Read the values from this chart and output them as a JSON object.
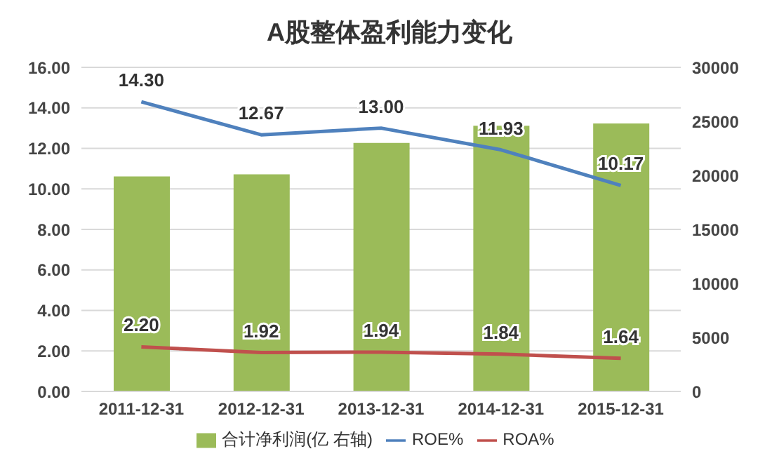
{
  "chart_data": {
    "type": "bar",
    "title": "A股整体盈利能力变化",
    "categories": [
      "2011-12-31",
      "2012-12-31",
      "2013-12-31",
      "2014-12-31",
      "2015-12-31"
    ],
    "series": [
      {
        "name": "合计净利润(亿 右轴)",
        "axis": "y2",
        "color": "#9bbb59",
        "values": [
          19900,
          20100,
          23000,
          24600,
          24800
        ]
      },
      {
        "name": "ROE%",
        "type": "line",
        "color": "#4f81bd",
        "values": [
          14.3,
          12.67,
          13.0,
          11.93,
          10.17
        ],
        "value_labels": [
          "14.30",
          "12.67",
          "13.00",
          "11.93",
          "10.17"
        ]
      },
      {
        "name": "ROA%",
        "type": "line",
        "color": "#c0504d",
        "values": [
          2.2,
          1.92,
          1.94,
          1.84,
          1.64
        ],
        "value_labels": [
          "2.20",
          "1.92",
          "1.94",
          "1.84",
          "1.64"
        ]
      }
    ],
    "ylim": [
      0,
      16
    ],
    "yticks": [
      {
        "value": 0,
        "label": "0.00"
      },
      {
        "value": 2,
        "label": "2.00"
      },
      {
        "value": 4,
        "label": "4.00"
      },
      {
        "value": 6,
        "label": "6.00"
      },
      {
        "value": 8,
        "label": "8.00"
      },
      {
        "value": 10,
        "label": "10.00"
      },
      {
        "value": 12,
        "label": "12.00"
      },
      {
        "value": 14,
        "label": "14.00"
      },
      {
        "value": 16,
        "label": "16.00"
      }
    ],
    "y2lim": [
      0,
      30000
    ],
    "y2ticks": [
      0,
      5000,
      10000,
      15000,
      20000,
      25000,
      30000
    ],
    "grid": "y",
    "legend": "bottom",
    "marker": "none"
  }
}
